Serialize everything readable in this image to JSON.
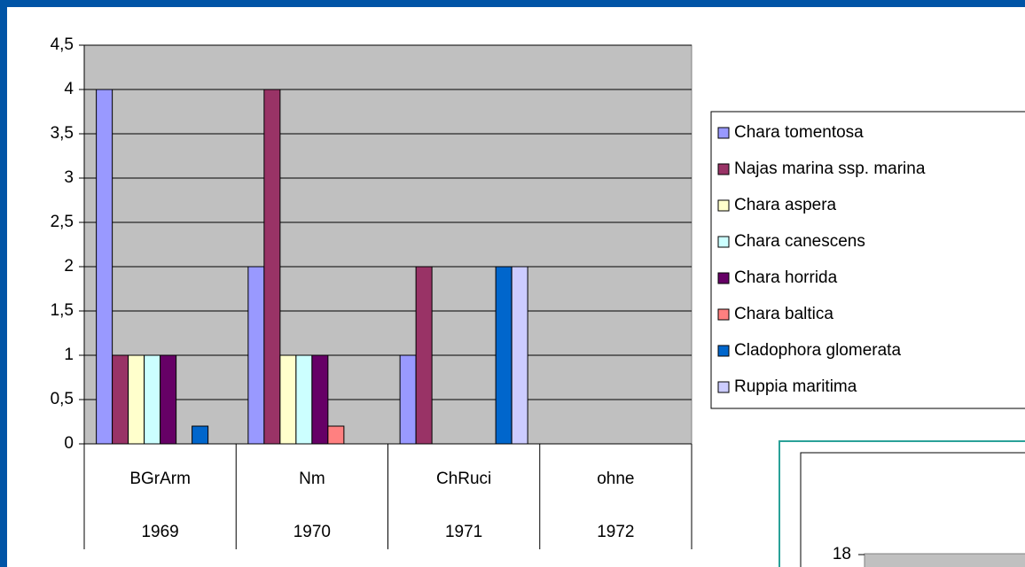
{
  "chart_data": [
    {
      "type": "bar",
      "categories": [
        "BGrArm",
        "Nm",
        "ChRuci",
        "ohne"
      ],
      "categories2": [
        "1969",
        "1970",
        "1971",
        "1972"
      ],
      "series": [
        {
          "name": "Chara tomentosa",
          "color": "#9999ff",
          "values": [
            4,
            2,
            1,
            0
          ]
        },
        {
          "name": "Najas marina ssp. marina",
          "color": "#993366",
          "values": [
            1,
            4,
            2,
            0
          ]
        },
        {
          "name": "Chara aspera",
          "color": "#ffffcc",
          "values": [
            1,
            1,
            0,
            0
          ]
        },
        {
          "name": "Chara canescens",
          "color": "#ccffff",
          "values": [
            1,
            1,
            0,
            0
          ]
        },
        {
          "name": "Chara horrida",
          "color": "#660066",
          "values": [
            1,
            1,
            0,
            0
          ]
        },
        {
          "name": "Chara baltica",
          "color": "#ff8080",
          "values": [
            0,
            0.2,
            0,
            0
          ]
        },
        {
          "name": "Cladophora glomerata",
          "color": "#0066cc",
          "values": [
            0.2,
            0,
            2,
            0
          ]
        },
        {
          "name": "Ruppia maritima",
          "color": "#ccccff",
          "values": [
            0,
            0,
            2,
            0
          ]
        }
      ],
      "ylim": [
        0,
        4.5
      ],
      "yticks": [
        0,
        {
          "value": 0.5,
          "label": "0,5"
        },
        1,
        {
          "value": 1.5,
          "label": "1,5"
        },
        2,
        {
          "value": 2.5,
          "label": "2,5"
        },
        3,
        {
          "value": 3.5,
          "label": "3,5"
        },
        4,
        {
          "value": 4.5,
          "label": "4,5"
        }
      ],
      "grid": true,
      "legend": "right"
    },
    {
      "type": "bar",
      "yticks": [
        18
      ]
    }
  ]
}
